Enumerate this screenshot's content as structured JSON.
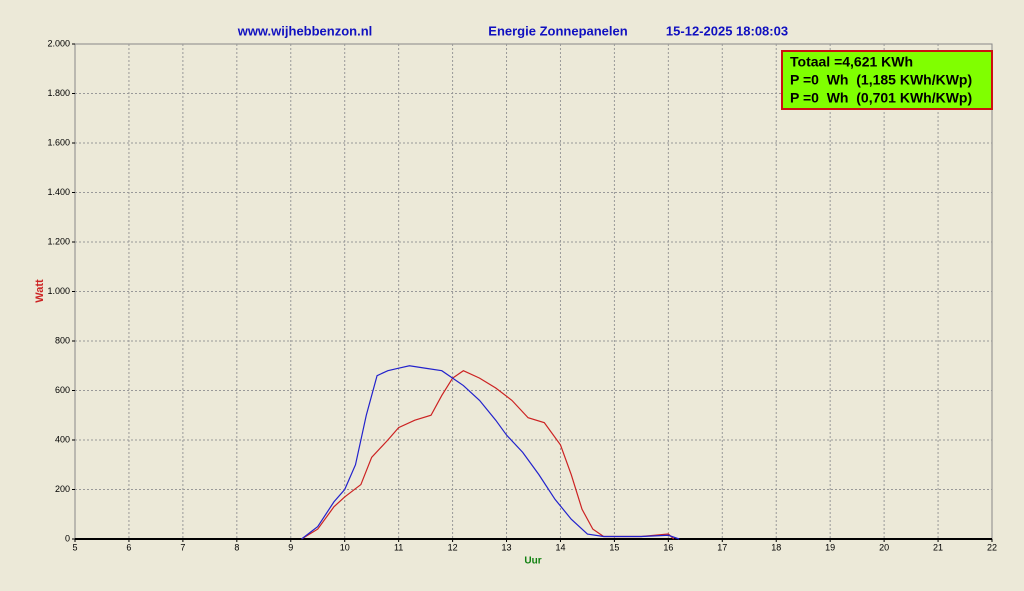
{
  "chart_data": {
    "type": "line",
    "title": "Energie Zonnepanelen",
    "subtitle": "www.wijhebbenzon.nl",
    "timestamp": "15-12-2025 18:08:03",
    "ylabel": "Watt",
    "xlabel": "Uur",
    "annotations": [
      "Totaal =4,621 KWh",
      "P =0  Wh  (1,185 KWh/KWp)",
      "P =0  Wh  (0,701 KWh/KWp)"
    ],
    "xlim": [
      5,
      22
    ],
    "xticks": [
      5,
      6,
      7,
      8,
      9,
      10,
      11,
      12,
      13,
      14,
      15,
      16,
      17,
      18,
      19,
      20,
      21,
      22
    ],
    "ylim": [
      0,
      2000
    ],
    "yticks": [
      0,
      200,
      400,
      600,
      800,
      {
        "value": 1000,
        "label": "1.000"
      },
      {
        "value": 1200,
        "label": "1.200"
      },
      {
        "value": 1400,
        "label": "1.400"
      },
      {
        "value": 1600,
        "label": "1.600"
      },
      {
        "value": 1800,
        "label": "1.800"
      },
      {
        "value": 2000,
        "label": "2.000"
      }
    ],
    "grid": true,
    "series": [
      {
        "color": "#cc2222",
        "x": [
          9.2,
          9.5,
          9.8,
          10.0,
          10.3,
          10.5,
          10.8,
          11.0,
          11.3,
          11.6,
          11.8,
          12.0,
          12.2,
          12.5,
          12.8,
          13.1,
          13.4,
          13.7,
          14.0,
          14.2,
          14.4,
          14.6,
          14.8,
          15.5,
          16.0,
          16.1
        ],
        "values": [
          0,
          40,
          130,
          170,
          220,
          330,
          400,
          450,
          480,
          500,
          580,
          650,
          680,
          650,
          610,
          560,
          490,
          470,
          380,
          260,
          120,
          40,
          10,
          10,
          20,
          0
        ]
      },
      {
        "color": "#2222cc",
        "x": [
          9.2,
          9.5,
          9.8,
          10.0,
          10.2,
          10.4,
          10.6,
          10.8,
          11.0,
          11.2,
          11.5,
          11.8,
          12.0,
          12.2,
          12.5,
          12.8,
          13.0,
          13.3,
          13.6,
          13.9,
          14.2,
          14.5,
          14.8,
          15.5,
          16.0,
          16.2
        ],
        "values": [
          0,
          50,
          150,
          200,
          300,
          500,
          660,
          680,
          690,
          700,
          690,
          680,
          650,
          620,
          560,
          480,
          420,
          350,
          260,
          160,
          80,
          20,
          10,
          10,
          15,
          0
        ]
      }
    ]
  }
}
